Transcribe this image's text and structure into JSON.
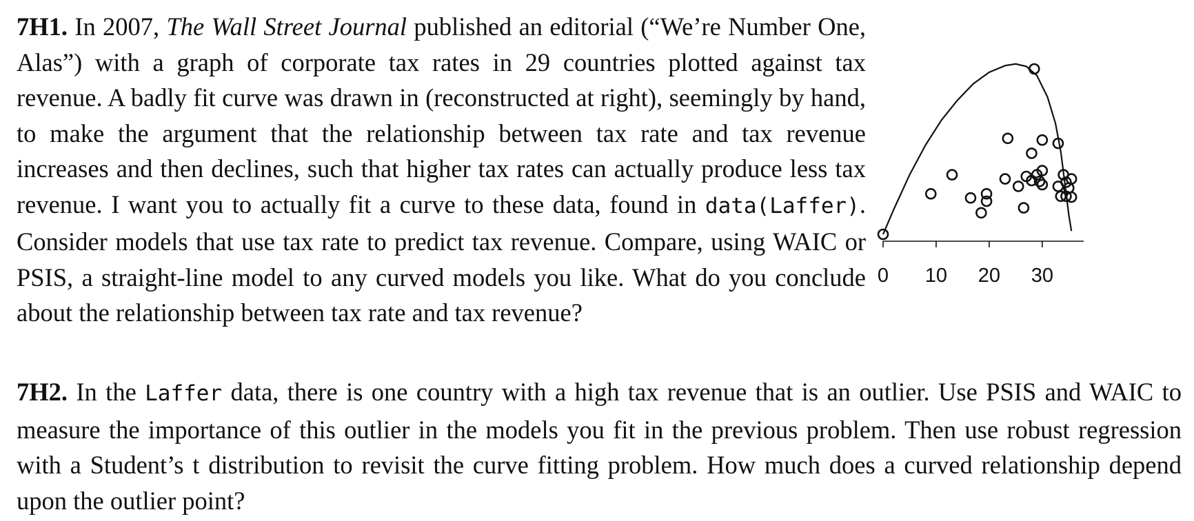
{
  "problem_1": {
    "number": "7H1.",
    "text_a": "In 2007, ",
    "publication": "The Wall Street Journal",
    "text_b": " published an editorial (“We’re Num­ber One, Alas”) with a graph of corporate tax rates in 29 countries plot­ted against tax revenue.  A badly fit curve was drawn in (reconstructed at right), seemingly by hand, to make the argument that the relationship between tax rate and tax revenue increases and then declines, such that higher tax rates can actually produce less tax revenue. I want you to actu­ally fit a curve to these data, found in ",
    "code": "data(Laffer)",
    "text_c": ". Consider models that use tax rate to predict tax revenue. Compare, using WAIC or PSIS, a straight-line model to any curved models you like. What do you conclude about the relationship between tax rate and tax revenue?"
  },
  "problem_2": {
    "number": "7H2.",
    "text_a": "In the ",
    "code": "Laffer",
    "text_b": " data, there is one country with a high tax revenue that is an outlier. Use PSIS and WAIC to measure the importance of this outlier in the models you fit in the previous problem. Then use robust regression with a Student’s t distribution to revisit the curve fitting problem.  How much does a curved relationship depend upon the outlier point?"
  },
  "chart_data": {
    "type": "scatter",
    "title": "",
    "xlabel": "",
    "ylabel": "",
    "xlim": [
      0,
      36
    ],
    "ylim": [
      0,
      10.5
    ],
    "x_ticks": [
      "0",
      "10",
      "20",
      "30"
    ],
    "y_ticks": [
      "0",
      "5",
      "10"
    ],
    "grid": false,
    "legend": "none",
    "marker": "open-circle",
    "line_color": "#111111",
    "points": [
      {
        "x": 0.0,
        "y": 0.0
      },
      {
        "x": 28.5,
        "y": 10.0
      },
      {
        "x": 9.0,
        "y": 2.45
      },
      {
        "x": 13.0,
        "y": 3.6
      },
      {
        "x": 16.5,
        "y": 2.2
      },
      {
        "x": 18.5,
        "y": 1.3
      },
      {
        "x": 19.5,
        "y": 2.45
      },
      {
        "x": 19.5,
        "y": 2.0
      },
      {
        "x": 23.5,
        "y": 5.8
      },
      {
        "x": 23.0,
        "y": 3.35
      },
      {
        "x": 25.5,
        "y": 2.9
      },
      {
        "x": 26.5,
        "y": 1.6
      },
      {
        "x": 27.0,
        "y": 3.5
      },
      {
        "x": 28.0,
        "y": 4.9
      },
      {
        "x": 28.0,
        "y": 3.25
      },
      {
        "x": 29.0,
        "y": 3.6
      },
      {
        "x": 30.0,
        "y": 5.7
      },
      {
        "x": 30.0,
        "y": 3.85
      },
      {
        "x": 29.5,
        "y": 3.2
      },
      {
        "x": 30.0,
        "y": 3.0
      },
      {
        "x": 33.0,
        "y": 5.5
      },
      {
        "x": 33.0,
        "y": 2.9
      },
      {
        "x": 33.5,
        "y": 2.3
      },
      {
        "x": 34.0,
        "y": 3.6
      },
      {
        "x": 34.5,
        "y": 2.3
      },
      {
        "x": 34.5,
        "y": 3.15
      },
      {
        "x": 35.0,
        "y": 2.8
      },
      {
        "x": 35.5,
        "y": 3.35
      },
      {
        "x": 35.5,
        "y": 2.25
      }
    ],
    "curve": [
      {
        "x": 0.0,
        "y": 0.0
      },
      {
        "x": 2.0,
        "y": 1.5
      },
      {
        "x": 5.0,
        "y": 3.6
      },
      {
        "x": 8.0,
        "y": 5.4
      },
      {
        "x": 11.0,
        "y": 6.9
      },
      {
        "x": 14.0,
        "y": 8.1
      },
      {
        "x": 17.0,
        "y": 9.1
      },
      {
        "x": 20.0,
        "y": 9.8
      },
      {
        "x": 23.0,
        "y": 10.2
      },
      {
        "x": 25.0,
        "y": 10.3
      },
      {
        "x": 27.0,
        "y": 10.15
      },
      {
        "x": 29.0,
        "y": 9.6
      },
      {
        "x": 31.0,
        "y": 8.3
      },
      {
        "x": 32.5,
        "y": 6.7
      },
      {
        "x": 33.5,
        "y": 5.0
      },
      {
        "x": 34.3,
        "y": 3.0
      },
      {
        "x": 35.0,
        "y": 1.2
      },
      {
        "x": 35.5,
        "y": 0.2
      }
    ]
  }
}
